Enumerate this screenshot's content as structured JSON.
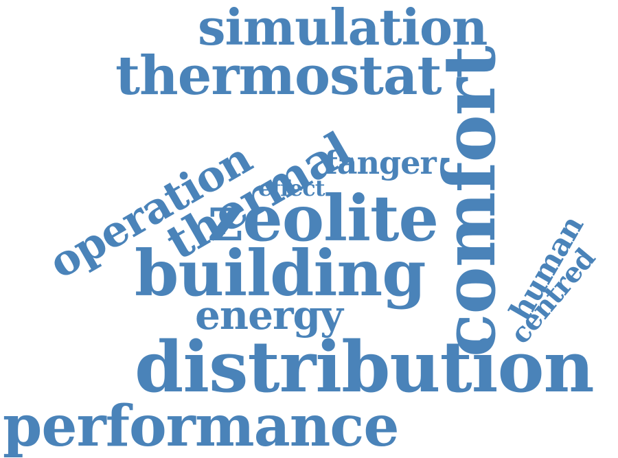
{
  "word_cloud": {
    "color": "#4a83b9",
    "words": [
      {
        "id": "simulation",
        "text": "simulation",
        "orientation": "horizontal"
      },
      {
        "id": "thermostat",
        "text": "thermostat",
        "orientation": "horizontal"
      },
      {
        "id": "operation",
        "text": "operation",
        "orientation": "diagonal-up"
      },
      {
        "id": "thermal",
        "text": "thermal",
        "orientation": "diagonal-up"
      },
      {
        "id": "fanger",
        "text": "fanger",
        "orientation": "horizontal"
      },
      {
        "id": "effect",
        "text": "effect",
        "orientation": "horizontal"
      },
      {
        "id": "zeolite",
        "text": "zeolite",
        "orientation": "horizontal"
      },
      {
        "id": "comfort",
        "text": "comfort",
        "orientation": "vertical-up"
      },
      {
        "id": "building",
        "text": "building",
        "orientation": "horizontal"
      },
      {
        "id": "human",
        "text": "human",
        "orientation": "diagonal-up"
      },
      {
        "id": "centred",
        "text": "centred",
        "orientation": "diagonal-up"
      },
      {
        "id": "energy",
        "text": "energy",
        "orientation": "horizontal"
      },
      {
        "id": "distribution",
        "text": "distribution",
        "orientation": "horizontal"
      },
      {
        "id": "performance",
        "text": "performance",
        "orientation": "horizontal"
      }
    ]
  }
}
